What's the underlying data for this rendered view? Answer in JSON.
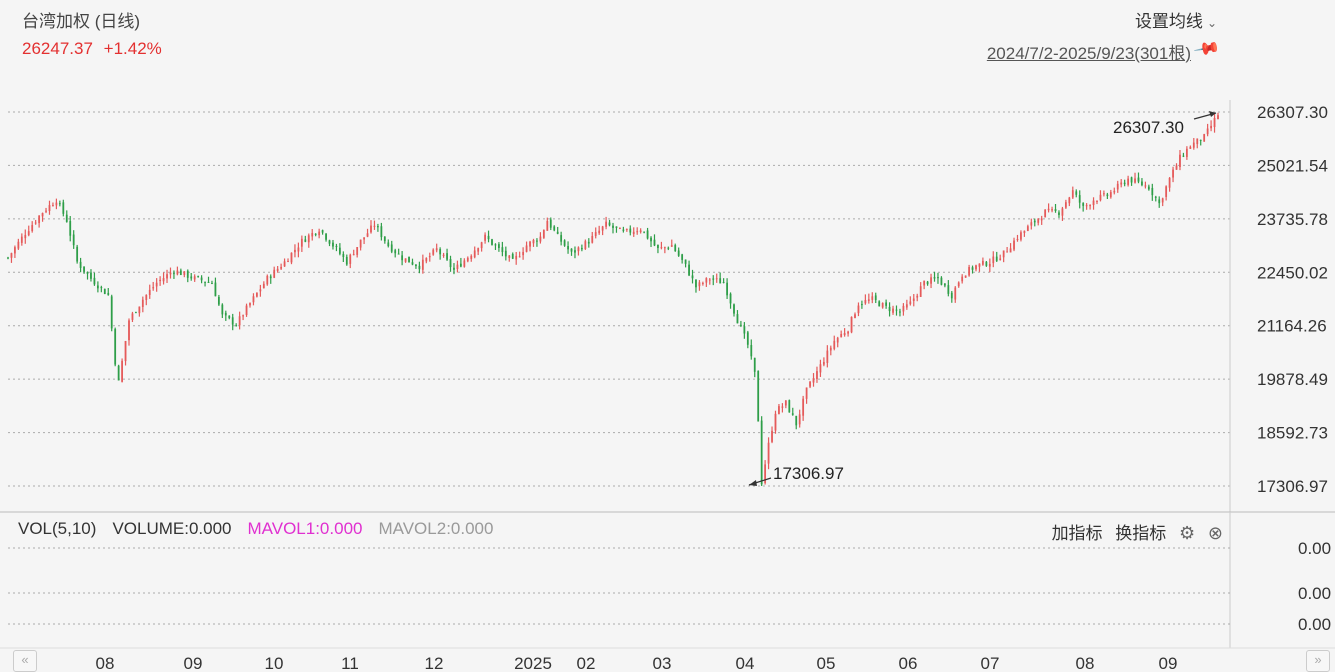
{
  "header": {
    "title": "台湾加权 (日线)",
    "last_price": "26247.37",
    "change_pct": "+1.42%",
    "ma_setting_label": "设置均线",
    "date_range": "2024/7/2-2025/9/23(301根)"
  },
  "volume_panel": {
    "vol_label": "VOL(5,10)",
    "volume_label": "VOLUME:0.000",
    "mavol1_label": "MAVOL1:0.000",
    "mavol2_label": "MAVOL2:0.000",
    "add_indicator": "加指标",
    "switch_indicator": "换指标",
    "y_ticks": [
      "0.00",
      "0.00",
      "0.00"
    ]
  },
  "chart_data": {
    "type": "candlestick",
    "y_ticks": [
      "26307.30",
      "25021.54",
      "23735.78",
      "22450.02",
      "21164.26",
      "19878.49",
      "18592.73",
      "17306.97"
    ],
    "ylim": [
      17306.97,
      26307.3
    ],
    "x_ticks": [
      "08",
      "09",
      "10",
      "11",
      "12",
      "2025",
      "02",
      "03",
      "04",
      "05",
      "06",
      "07",
      "08",
      "09"
    ],
    "annotations": {
      "high": "26307.30",
      "low": "17306.97"
    },
    "up_color": "#e55a5a",
    "down_color": "#2e9e48",
    "path_points": [
      [
        0,
        22800
      ],
      [
        5,
        23400
      ],
      [
        10,
        23900
      ],
      [
        14,
        24200
      ],
      [
        17,
        23700
      ],
      [
        20,
        22700
      ],
      [
        24,
        22300
      ],
      [
        29,
        21900
      ],
      [
        31,
        20300
      ],
      [
        32,
        19800
      ],
      [
        35,
        21300
      ],
      [
        39,
        21800
      ],
      [
        43,
        22200
      ],
      [
        48,
        22500
      ],
      [
        54,
        22300
      ],
      [
        59,
        22200
      ],
      [
        62,
        21400
      ],
      [
        66,
        21200
      ],
      [
        70,
        21700
      ],
      [
        75,
        22300
      ],
      [
        80,
        22700
      ],
      [
        85,
        23200
      ],
      [
        90,
        23500
      ],
      [
        94,
        23100
      ],
      [
        98,
        22700
      ],
      [
        102,
        23200
      ],
      [
        106,
        23600
      ],
      [
        110,
        23100
      ],
      [
        114,
        22800
      ],
      [
        119,
        22600
      ],
      [
        124,
        23000
      ],
      [
        129,
        22500
      ],
      [
        134,
        22900
      ],
      [
        138,
        23300
      ],
      [
        142,
        23000
      ],
      [
        146,
        22700
      ],
      [
        150,
        23100
      ],
      [
        154,
        23300
      ],
      [
        156,
        23700
      ],
      [
        159,
        23300
      ],
      [
        163,
        22900
      ],
      [
        168,
        23200
      ],
      [
        173,
        23600
      ],
      [
        178,
        23400
      ],
      [
        183,
        23500
      ],
      [
        188,
        23000
      ],
      [
        192,
        23100
      ],
      [
        196,
        22600
      ],
      [
        199,
        22100
      ],
      [
        203,
        22300
      ],
      [
        207,
        22200
      ],
      [
        211,
        21300
      ],
      [
        214,
        20700
      ],
      [
        216,
        20000
      ],
      [
        217,
        18900
      ],
      [
        218,
        17400
      ],
      [
        220,
        18300
      ],
      [
        222,
        19100
      ],
      [
        225,
        19300
      ],
      [
        228,
        18800
      ],
      [
        231,
        19600
      ],
      [
        235,
        20200
      ],
      [
        239,
        20800
      ],
      [
        243,
        21100
      ],
      [
        246,
        21700
      ],
      [
        250,
        21800
      ],
      [
        254,
        21600
      ],
      [
        258,
        21500
      ],
      [
        261,
        21700
      ],
      [
        265,
        22200
      ],
      [
        269,
        22300
      ],
      [
        273,
        21900
      ],
      [
        276,
        22400
      ],
      [
        280,
        22600
      ],
      [
        284,
        22700
      ],
      [
        288,
        22900
      ],
      [
        292,
        23300
      ],
      [
        296,
        23600
      ],
      [
        300,
        23900
      ],
      [
        304,
        23900
      ],
      [
        308,
        24400
      ],
      [
        311,
        24000
      ],
      [
        314,
        24200
      ],
      [
        318,
        24300
      ],
      [
        321,
        24500
      ],
      [
        324,
        24700
      ],
      [
        327,
        24600
      ],
      [
        330,
        24500
      ],
      [
        333,
        24100
      ],
      [
        336,
        24700
      ],
      [
        339,
        25200
      ],
      [
        342,
        25500
      ],
      [
        346,
        25700
      ],
      [
        350,
        26247
      ]
    ]
  }
}
